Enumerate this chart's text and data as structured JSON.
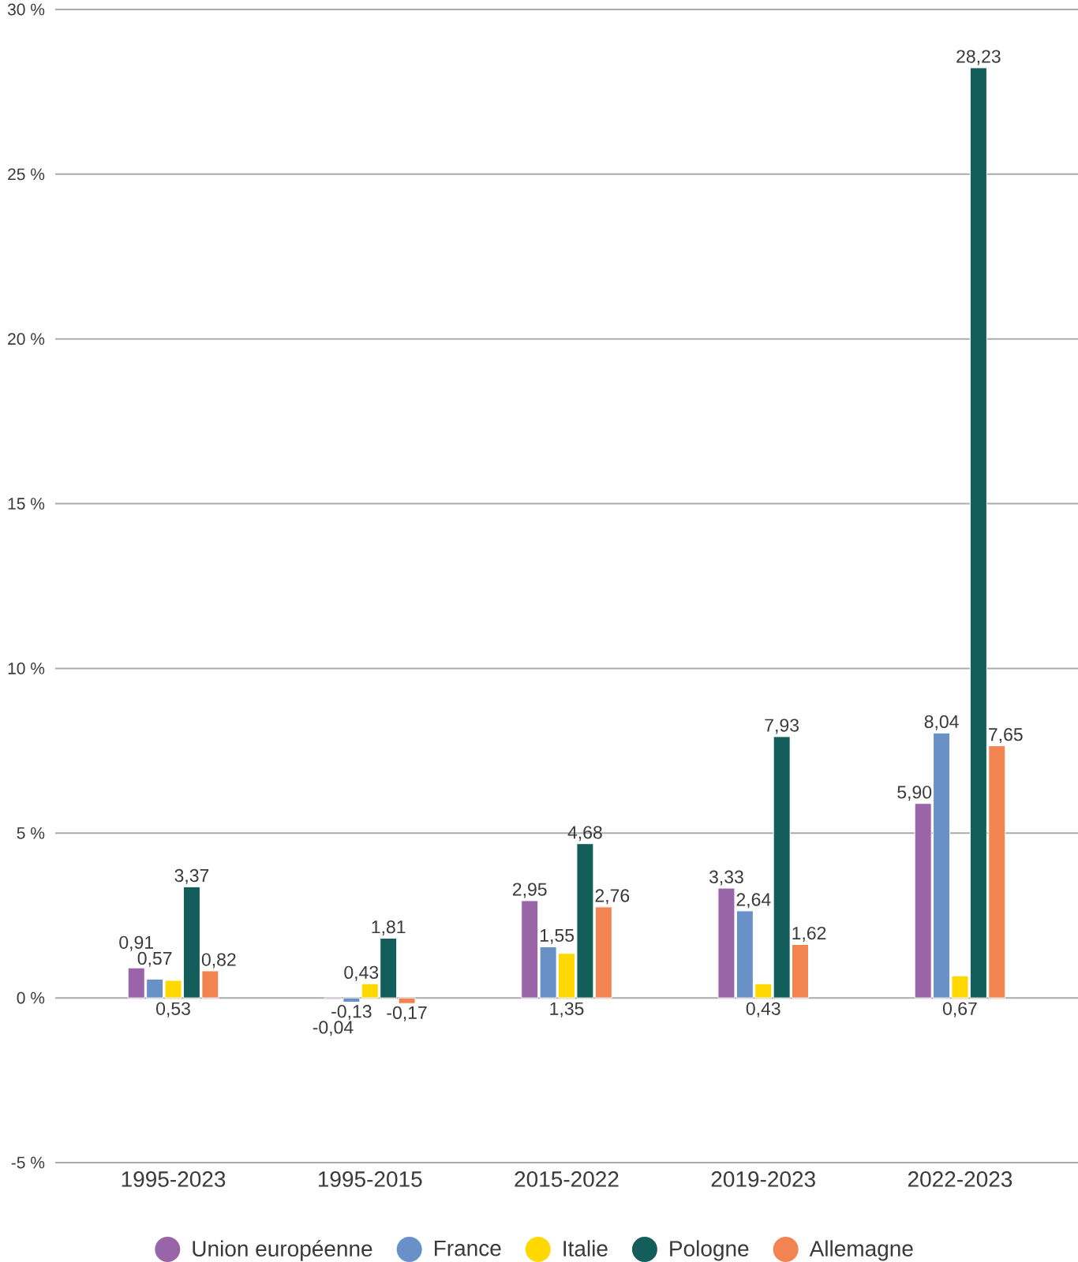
{
  "chart_data": {
    "type": "bar",
    "categories": [
      "1995-2023",
      "1995-2015",
      "2015-2022",
      "2019-2023",
      "2022-2023"
    ],
    "series": [
      {
        "name": "Union européenne",
        "color": "#9a64a8",
        "values": [
          0.91,
          -0.04,
          2.95,
          3.33,
          5.9
        ],
        "value_labels": [
          "0,91",
          "-0,04",
          "2,95",
          "3,33",
          "5,90"
        ]
      },
      {
        "name": "France",
        "color": "#6a90c8",
        "values": [
          0.57,
          -0.13,
          1.55,
          2.64,
          8.04
        ],
        "value_labels": [
          "0,57",
          "-0,13",
          "1,55",
          "2,64",
          "8,04"
        ]
      },
      {
        "name": "Italie",
        "color": "#ffd800",
        "values": [
          0.53,
          0.43,
          1.35,
          0.43,
          0.67
        ],
        "value_labels": [
          "0,53",
          "0,43",
          "1,35",
          "0,43",
          "0,67"
        ]
      },
      {
        "name": "Pologne",
        "color": "#135e5a",
        "values": [
          3.37,
          1.81,
          4.68,
          7.93,
          28.23
        ],
        "value_labels": [
          "3,37",
          "1,81",
          "4,68",
          "7,93",
          "28,23"
        ]
      },
      {
        "name": "Allemagne",
        "color": "#f28452",
        "values": [
          0.82,
          -0.17,
          2.76,
          1.62,
          7.65
        ],
        "value_labels": [
          "0,82",
          "-0,17",
          "2,76",
          "1,62",
          "7,65"
        ]
      }
    ],
    "ylim": [
      -5,
      30
    ],
    "yticks": [
      {
        "value": -5,
        "label": "-5 %"
      },
      {
        "value": 0,
        "label": "0 %"
      },
      {
        "value": 5,
        "label": "5 %"
      },
      {
        "value": 10,
        "label": "10 %"
      },
      {
        "value": 15,
        "label": "15 %"
      },
      {
        "value": 20,
        "label": "20 %"
      },
      {
        "value": 25,
        "label": "25 %"
      },
      {
        "value": 30,
        "label": "30 %"
      }
    ],
    "grid": "y",
    "legend": "bottom"
  }
}
